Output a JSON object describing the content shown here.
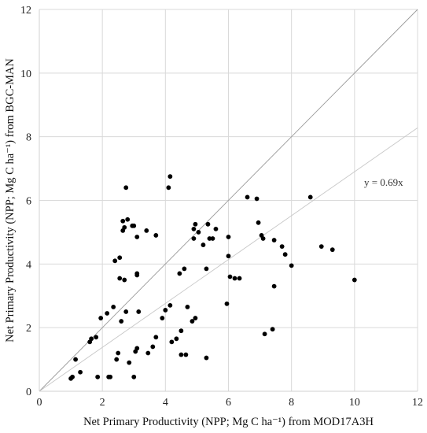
{
  "chart_data": {
    "type": "scatter",
    "xlabel": "Net Primary Productivity (NPP; Mg C ha⁻¹) from MOD17A3H",
    "ylabel": "Net Primary Productivity (NPP; Mg C ha⁻¹) from BGC-MAN",
    "xlim": [
      0,
      12
    ],
    "ylim": [
      0,
      12
    ],
    "xticks": [
      "0",
      "2",
      "4",
      "6",
      "8",
      "10",
      "12"
    ],
    "yticks": [
      "0",
      "2",
      "4",
      "6",
      "8",
      "10",
      "12"
    ],
    "grid": true,
    "reference_line_slope": 1,
    "fit_line_slope": 0.69,
    "fit_label": "y = 0.69x",
    "colors": {
      "points": "#000000",
      "grid": "#d9d9d9",
      "one_to_one": "#9a9a9a",
      "fit": "#c8c8c8"
    },
    "points": [
      [
        1.0,
        0.4
      ],
      [
        1.05,
        0.45
      ],
      [
        1.15,
        1.0
      ],
      [
        1.3,
        0.6
      ],
      [
        1.6,
        1.55
      ],
      [
        1.65,
        1.65
      ],
      [
        1.8,
        1.7
      ],
      [
        1.85,
        0.45
      ],
      [
        1.95,
        2.3
      ],
      [
        2.15,
        2.45
      ],
      [
        2.2,
        0.45
      ],
      [
        2.25,
        0.45
      ],
      [
        2.35,
        2.65
      ],
      [
        2.4,
        4.1
      ],
      [
        2.45,
        1.0
      ],
      [
        2.5,
        1.2
      ],
      [
        2.55,
        3.55
      ],
      [
        2.55,
        4.2
      ],
      [
        2.6,
        2.2
      ],
      [
        2.65,
        5.35
      ],
      [
        2.65,
        5.05
      ],
      [
        2.7,
        5.15
      ],
      [
        2.7,
        3.5
      ],
      [
        2.75,
        6.4
      ],
      [
        2.75,
        2.5
      ],
      [
        2.8,
        5.4
      ],
      [
        2.85,
        0.9
      ],
      [
        2.95,
        5.2
      ],
      [
        3.0,
        5.2
      ],
      [
        3.0,
        0.45
      ],
      [
        3.05,
        1.25
      ],
      [
        3.1,
        1.35
      ],
      [
        3.1,
        3.65
      ],
      [
        3.1,
        3.7
      ],
      [
        3.1,
        4.85
      ],
      [
        3.15,
        2.5
      ],
      [
        3.4,
        5.05
      ],
      [
        3.45,
        1.2
      ],
      [
        3.6,
        1.4
      ],
      [
        3.7,
        4.9
      ],
      [
        3.7,
        1.7
      ],
      [
        3.9,
        2.3
      ],
      [
        4.0,
        2.55
      ],
      [
        4.1,
        6.4
      ],
      [
        4.15,
        6.75
      ],
      [
        4.15,
        2.7
      ],
      [
        4.2,
        1.55
      ],
      [
        4.35,
        1.65
      ],
      [
        4.45,
        3.7
      ],
      [
        4.5,
        1.15
      ],
      [
        4.5,
        1.9
      ],
      [
        4.6,
        3.85
      ],
      [
        4.65,
        1.15
      ],
      [
        4.7,
        2.65
      ],
      [
        4.85,
        2.2
      ],
      [
        4.9,
        5.1
      ],
      [
        4.9,
        4.8
      ],
      [
        4.95,
        2.3
      ],
      [
        4.95,
        5.25
      ],
      [
        5.05,
        5.0
      ],
      [
        5.2,
        4.6
      ],
      [
        5.3,
        1.05
      ],
      [
        5.3,
        3.85
      ],
      [
        5.35,
        5.25
      ],
      [
        5.4,
        4.8
      ],
      [
        5.5,
        4.8
      ],
      [
        5.6,
        5.1
      ],
      [
        5.95,
        2.75
      ],
      [
        6.0,
        4.25
      ],
      [
        6.0,
        4.85
      ],
      [
        6.05,
        3.6
      ],
      [
        6.2,
        3.55
      ],
      [
        6.35,
        3.55
      ],
      [
        6.6,
        6.1
      ],
      [
        6.9,
        6.05
      ],
      [
        6.95,
        5.3
      ],
      [
        7.05,
        4.9
      ],
      [
        7.1,
        4.8
      ],
      [
        7.15,
        1.8
      ],
      [
        7.4,
        1.95
      ],
      [
        7.45,
        4.75
      ],
      [
        7.45,
        3.3
      ],
      [
        7.7,
        4.55
      ],
      [
        7.8,
        4.3
      ],
      [
        8.0,
        3.95
      ],
      [
        8.6,
        6.1
      ],
      [
        8.95,
        4.55
      ],
      [
        9.3,
        4.45
      ],
      [
        10.0,
        3.5
      ]
    ]
  }
}
